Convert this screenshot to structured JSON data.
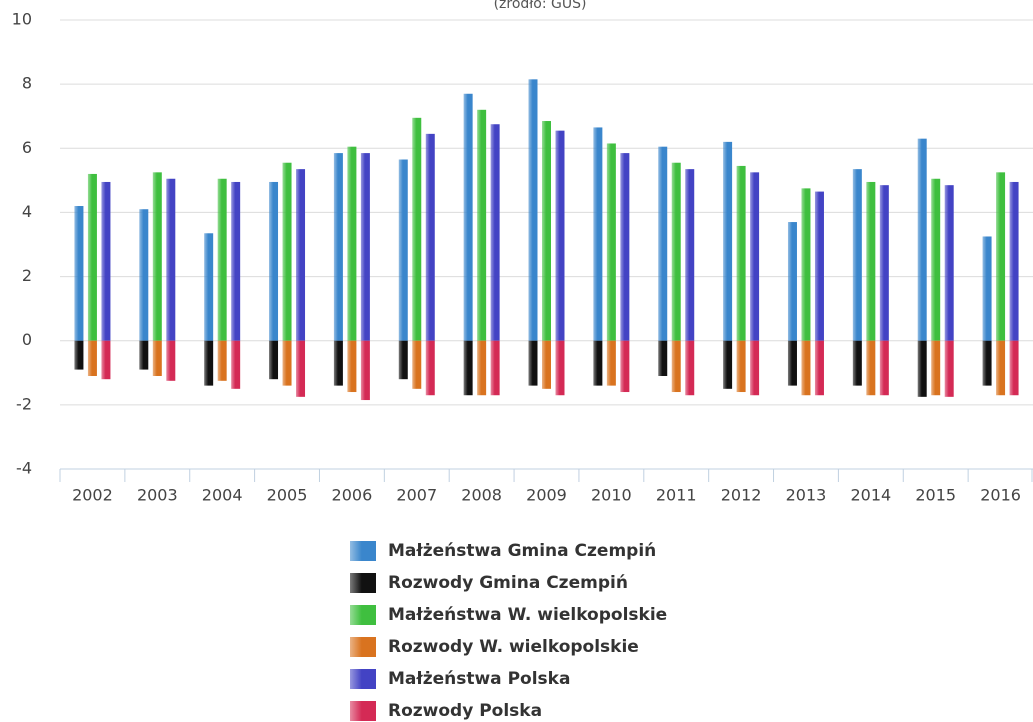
{
  "chart_data": {
    "type": "bar",
    "subtitle": "(źródło: GUS)",
    "categories": [
      "2002",
      "2003",
      "2004",
      "2005",
      "2006",
      "2007",
      "2008",
      "2009",
      "2010",
      "2011",
      "2012",
      "2013",
      "2014",
      "2015",
      "2016"
    ],
    "series": [
      {
        "name": "Małżeństwa Gmina Czempiń",
        "color": "#3a86cc",
        "values": [
          4.2,
          4.1,
          3.35,
          4.95,
          5.85,
          5.65,
          7.7,
          8.15,
          6.65,
          6.05,
          6.2,
          3.7,
          5.35,
          6.3,
          3.25
        ]
      },
      {
        "name": "Rozwody Gmina Czempiń",
        "color": "#111111",
        "values": [
          -0.9,
          -0.9,
          -1.4,
          -1.2,
          -1.4,
          -1.2,
          -1.7,
          -1.4,
          -1.4,
          -1.1,
          -1.5,
          -1.4,
          -1.4,
          -1.75,
          -1.4
        ]
      },
      {
        "name": "Małżeństwa W. wielkopolskie",
        "color": "#3fbf3f",
        "values": [
          5.2,
          5.25,
          5.05,
          5.55,
          6.05,
          6.95,
          7.2,
          6.85,
          6.15,
          5.55,
          5.45,
          4.75,
          4.95,
          5.05,
          5.25
        ]
      },
      {
        "name": "Rozwody W. wielkopolskie",
        "color": "#d9731f",
        "values": [
          -1.1,
          -1.1,
          -1.25,
          -1.4,
          -1.6,
          -1.5,
          -1.7,
          -1.5,
          -1.4,
          -1.6,
          -1.6,
          -1.7,
          -1.7,
          -1.7,
          -1.7
        ]
      },
      {
        "name": "Małżeństwa Polska",
        "color": "#4343c4",
        "values": [
          4.95,
          5.05,
          4.95,
          5.35,
          5.85,
          6.45,
          6.75,
          6.55,
          5.85,
          5.35,
          5.25,
          4.65,
          4.85,
          4.85,
          4.95
        ]
      },
      {
        "name": "Rozwody Polska",
        "color": "#d42a55",
        "values": [
          -1.2,
          -1.25,
          -1.5,
          -1.75,
          -1.85,
          -1.7,
          -1.7,
          -1.7,
          -1.6,
          -1.7,
          -1.7,
          -1.7,
          -1.7,
          -1.75,
          -1.7
        ]
      }
    ],
    "ylim": [
      -4,
      10
    ],
    "yticks": [
      -4,
      -2,
      0,
      2,
      4,
      6,
      8,
      10
    ],
    "grid": true
  }
}
